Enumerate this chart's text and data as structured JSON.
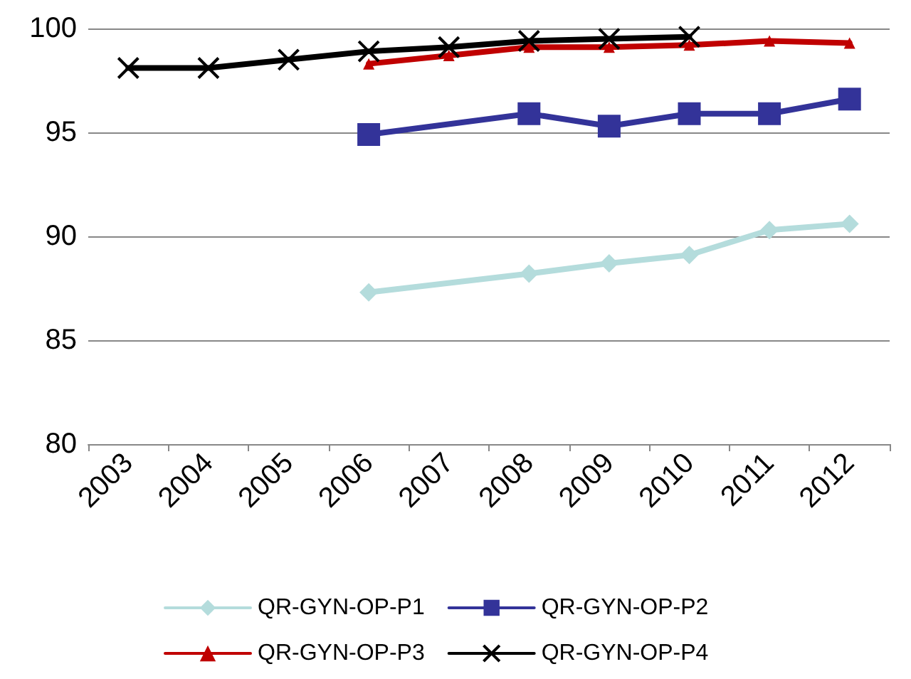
{
  "chart_data": {
    "type": "line",
    "categories": [
      "2003",
      "2004",
      "2005",
      "2006",
      "2007",
      "2008",
      "2009",
      "2010",
      "2011",
      "2012"
    ],
    "series": [
      {
        "name": "QR-GYN-OP-P1",
        "color": "#b4dcdc",
        "marker": "diamond",
        "values": [
          null,
          null,
          null,
          87.3,
          null,
          88.2,
          88.7,
          89.1,
          90.3,
          90.6
        ]
      },
      {
        "name": "QR-GYN-OP-P2",
        "color": "#333399",
        "marker": "square",
        "values": [
          null,
          null,
          null,
          94.9,
          null,
          95.9,
          95.3,
          95.9,
          95.9,
          96.6
        ]
      },
      {
        "name": "QR-GYN-OP-P3",
        "color": "#c00000",
        "marker": "triangle",
        "values": [
          null,
          null,
          null,
          98.3,
          98.7,
          99.1,
          99.1,
          99.2,
          99.4,
          99.3
        ]
      },
      {
        "name": "QR-GYN-OP-P4",
        "color": "#000000",
        "marker": "cross",
        "values": [
          98.1,
          98.1,
          98.5,
          98.9,
          99.1,
          99.4,
          99.5,
          99.6,
          null,
          null
        ]
      }
    ],
    "ylim": [
      80,
      100
    ],
    "yticks": [
      80,
      85,
      90,
      95,
      100
    ],
    "grid": "y",
    "legend": "bottom",
    "line_style": "solid"
  }
}
